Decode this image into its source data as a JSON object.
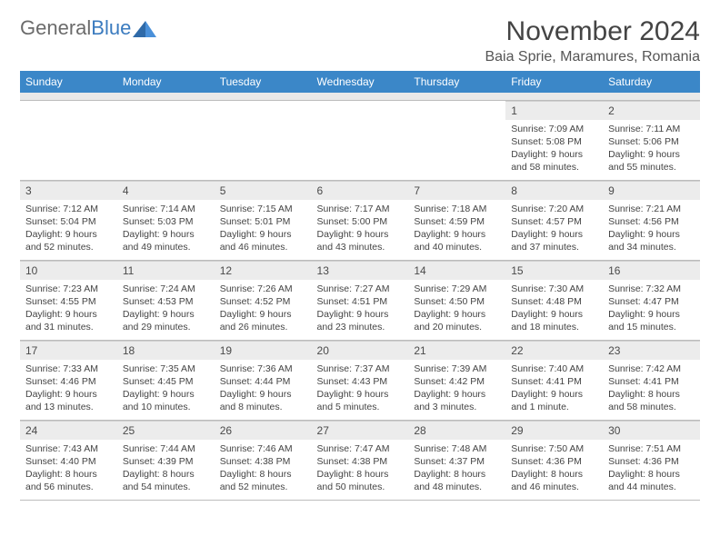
{
  "logo": {
    "textGray": "General",
    "textBlue": "Blue"
  },
  "title": "November 2024",
  "location": "Baia Sprie, Maramures, Romania",
  "dayHeaders": [
    "Sunday",
    "Monday",
    "Tuesday",
    "Wednesday",
    "Thursday",
    "Friday",
    "Saturday"
  ],
  "colors": {
    "headerBg": "#3b87c8",
    "headerText": "#ffffff",
    "dayNumBg": "#ececec",
    "bodyText": "#444444",
    "logoGray": "#6b6b6b",
    "logoBlue": "#3b7bbf"
  },
  "weeks": [
    [
      null,
      null,
      null,
      null,
      null,
      {
        "n": "1",
        "sr": "Sunrise: 7:09 AM",
        "ss": "Sunset: 5:08 PM",
        "d1": "Daylight: 9 hours",
        "d2": "and 58 minutes."
      },
      {
        "n": "2",
        "sr": "Sunrise: 7:11 AM",
        "ss": "Sunset: 5:06 PM",
        "d1": "Daylight: 9 hours",
        "d2": "and 55 minutes."
      }
    ],
    [
      {
        "n": "3",
        "sr": "Sunrise: 7:12 AM",
        "ss": "Sunset: 5:04 PM",
        "d1": "Daylight: 9 hours",
        "d2": "and 52 minutes."
      },
      {
        "n": "4",
        "sr": "Sunrise: 7:14 AM",
        "ss": "Sunset: 5:03 PM",
        "d1": "Daylight: 9 hours",
        "d2": "and 49 minutes."
      },
      {
        "n": "5",
        "sr": "Sunrise: 7:15 AM",
        "ss": "Sunset: 5:01 PM",
        "d1": "Daylight: 9 hours",
        "d2": "and 46 minutes."
      },
      {
        "n": "6",
        "sr": "Sunrise: 7:17 AM",
        "ss": "Sunset: 5:00 PM",
        "d1": "Daylight: 9 hours",
        "d2": "and 43 minutes."
      },
      {
        "n": "7",
        "sr": "Sunrise: 7:18 AM",
        "ss": "Sunset: 4:59 PM",
        "d1": "Daylight: 9 hours",
        "d2": "and 40 minutes."
      },
      {
        "n": "8",
        "sr": "Sunrise: 7:20 AM",
        "ss": "Sunset: 4:57 PM",
        "d1": "Daylight: 9 hours",
        "d2": "and 37 minutes."
      },
      {
        "n": "9",
        "sr": "Sunrise: 7:21 AM",
        "ss": "Sunset: 4:56 PM",
        "d1": "Daylight: 9 hours",
        "d2": "and 34 minutes."
      }
    ],
    [
      {
        "n": "10",
        "sr": "Sunrise: 7:23 AM",
        "ss": "Sunset: 4:55 PM",
        "d1": "Daylight: 9 hours",
        "d2": "and 31 minutes."
      },
      {
        "n": "11",
        "sr": "Sunrise: 7:24 AM",
        "ss": "Sunset: 4:53 PM",
        "d1": "Daylight: 9 hours",
        "d2": "and 29 minutes."
      },
      {
        "n": "12",
        "sr": "Sunrise: 7:26 AM",
        "ss": "Sunset: 4:52 PM",
        "d1": "Daylight: 9 hours",
        "d2": "and 26 minutes."
      },
      {
        "n": "13",
        "sr": "Sunrise: 7:27 AM",
        "ss": "Sunset: 4:51 PM",
        "d1": "Daylight: 9 hours",
        "d2": "and 23 minutes."
      },
      {
        "n": "14",
        "sr": "Sunrise: 7:29 AM",
        "ss": "Sunset: 4:50 PM",
        "d1": "Daylight: 9 hours",
        "d2": "and 20 minutes."
      },
      {
        "n": "15",
        "sr": "Sunrise: 7:30 AM",
        "ss": "Sunset: 4:48 PM",
        "d1": "Daylight: 9 hours",
        "d2": "and 18 minutes."
      },
      {
        "n": "16",
        "sr": "Sunrise: 7:32 AM",
        "ss": "Sunset: 4:47 PM",
        "d1": "Daylight: 9 hours",
        "d2": "and 15 minutes."
      }
    ],
    [
      {
        "n": "17",
        "sr": "Sunrise: 7:33 AM",
        "ss": "Sunset: 4:46 PM",
        "d1": "Daylight: 9 hours",
        "d2": "and 13 minutes."
      },
      {
        "n": "18",
        "sr": "Sunrise: 7:35 AM",
        "ss": "Sunset: 4:45 PM",
        "d1": "Daylight: 9 hours",
        "d2": "and 10 minutes."
      },
      {
        "n": "19",
        "sr": "Sunrise: 7:36 AM",
        "ss": "Sunset: 4:44 PM",
        "d1": "Daylight: 9 hours",
        "d2": "and 8 minutes."
      },
      {
        "n": "20",
        "sr": "Sunrise: 7:37 AM",
        "ss": "Sunset: 4:43 PM",
        "d1": "Daylight: 9 hours",
        "d2": "and 5 minutes."
      },
      {
        "n": "21",
        "sr": "Sunrise: 7:39 AM",
        "ss": "Sunset: 4:42 PM",
        "d1": "Daylight: 9 hours",
        "d2": "and 3 minutes."
      },
      {
        "n": "22",
        "sr": "Sunrise: 7:40 AM",
        "ss": "Sunset: 4:41 PM",
        "d1": "Daylight: 9 hours",
        "d2": "and 1 minute."
      },
      {
        "n": "23",
        "sr": "Sunrise: 7:42 AM",
        "ss": "Sunset: 4:41 PM",
        "d1": "Daylight: 8 hours",
        "d2": "and 58 minutes."
      }
    ],
    [
      {
        "n": "24",
        "sr": "Sunrise: 7:43 AM",
        "ss": "Sunset: 4:40 PM",
        "d1": "Daylight: 8 hours",
        "d2": "and 56 minutes."
      },
      {
        "n": "25",
        "sr": "Sunrise: 7:44 AM",
        "ss": "Sunset: 4:39 PM",
        "d1": "Daylight: 8 hours",
        "d2": "and 54 minutes."
      },
      {
        "n": "26",
        "sr": "Sunrise: 7:46 AM",
        "ss": "Sunset: 4:38 PM",
        "d1": "Daylight: 8 hours",
        "d2": "and 52 minutes."
      },
      {
        "n": "27",
        "sr": "Sunrise: 7:47 AM",
        "ss": "Sunset: 4:38 PM",
        "d1": "Daylight: 8 hours",
        "d2": "and 50 minutes."
      },
      {
        "n": "28",
        "sr": "Sunrise: 7:48 AM",
        "ss": "Sunset: 4:37 PM",
        "d1": "Daylight: 8 hours",
        "d2": "and 48 minutes."
      },
      {
        "n": "29",
        "sr": "Sunrise: 7:50 AM",
        "ss": "Sunset: 4:36 PM",
        "d1": "Daylight: 8 hours",
        "d2": "and 46 minutes."
      },
      {
        "n": "30",
        "sr": "Sunrise: 7:51 AM",
        "ss": "Sunset: 4:36 PM",
        "d1": "Daylight: 8 hours",
        "d2": "and 44 minutes."
      }
    ]
  ]
}
